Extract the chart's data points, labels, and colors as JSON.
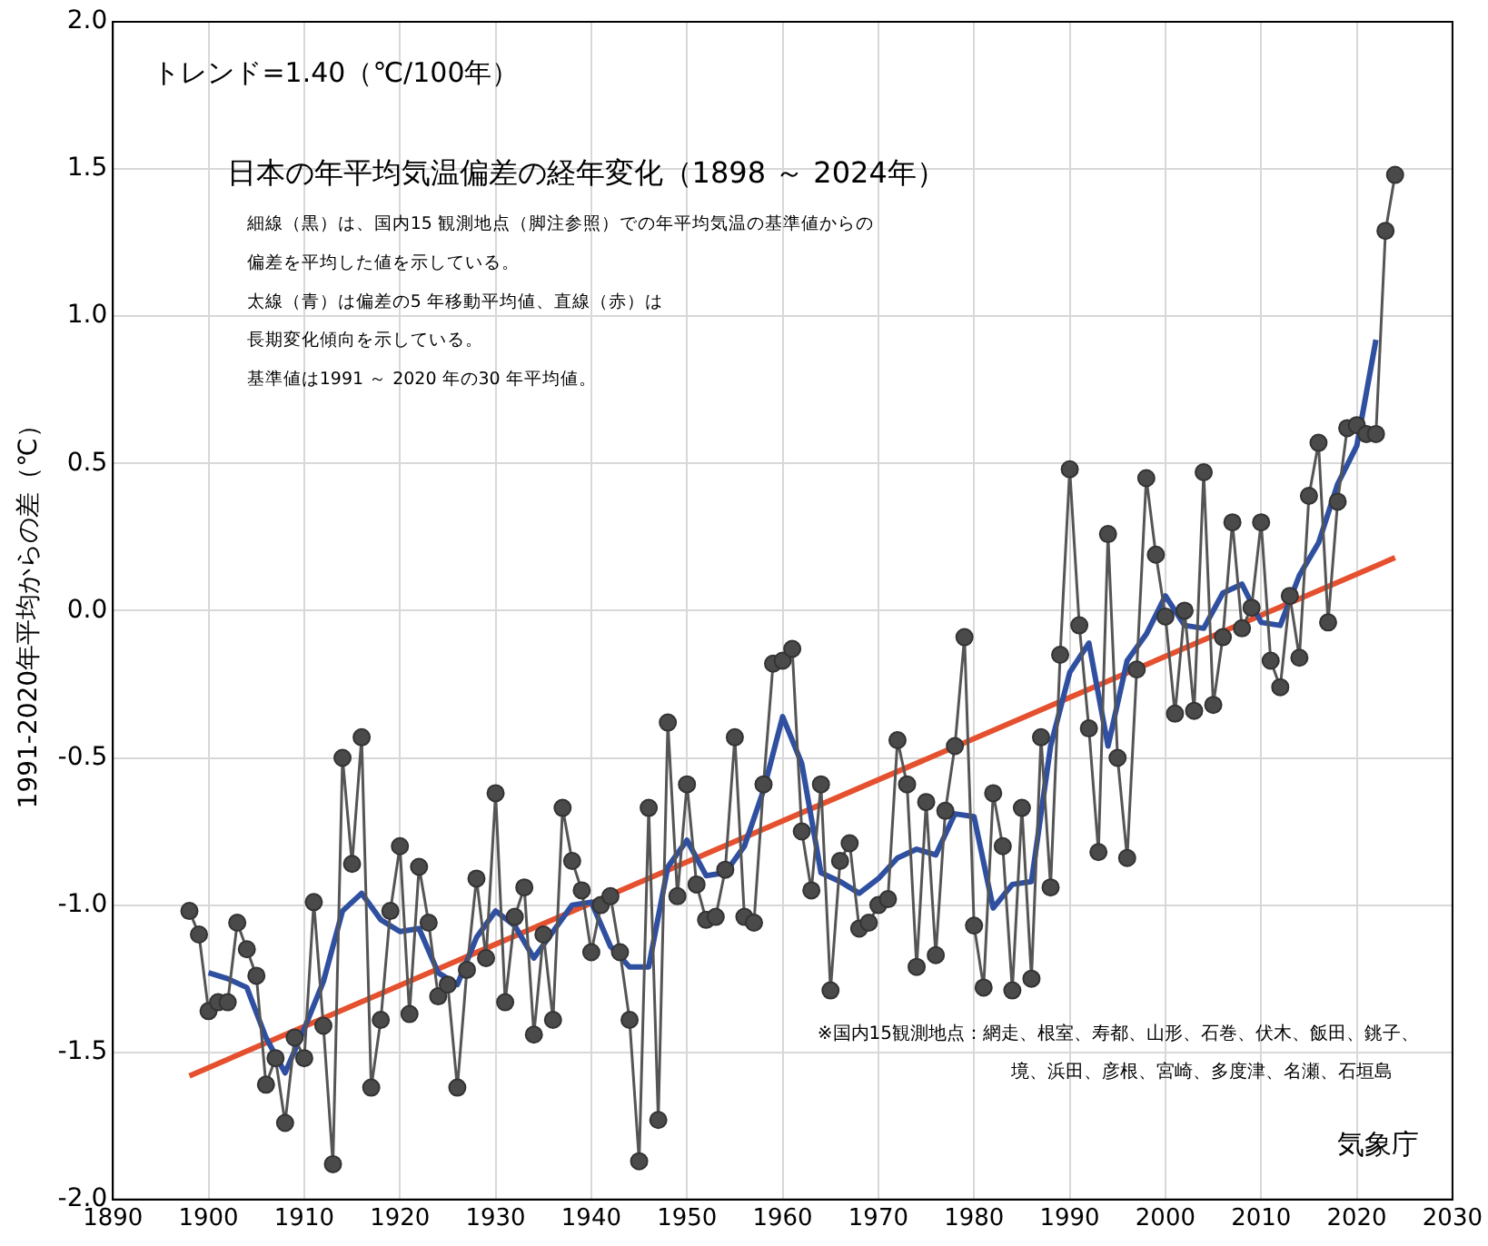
{
  "chart_data": {
    "type": "line",
    "title": "日本の年平均気温偏差の経年変化（1898 ～ 2024年）",
    "ylabel": "1991-2020年平均からの差（℃）",
    "annotations": [
      "トレンド=1.40（℃/100年）",
      "細線（黒）は、国内15 観測地点（脚注参照）での年平均気温の基準値からの",
      "偏差を平均した値を示している。",
      "太線（青）は偏差の5 年移動平均値、直線（赤）は",
      "長期変化傾向を示している。",
      "基準値は1991 ～ 2020 年の30 年平均値。",
      "※国内15観測地点：網走、根室、寿都、山形、石巻、伏木、飯田、銚子、",
      "境、浜田、彦根、宮崎、多度津、名瀬、石垣島",
      "気象庁"
    ],
    "xlim": [
      1890,
      2030
    ],
    "xticks": [
      1890,
      1900,
      1910,
      1920,
      1930,
      1940,
      1950,
      1960,
      1970,
      1980,
      1990,
      2000,
      2010,
      2020,
      2030
    ],
    "ylim": [
      -2,
      2
    ],
    "yticks": [
      {
        "value": -2,
        "label": "-2.0"
      },
      {
        "value": -1.5,
        "label": "-1.5"
      },
      {
        "value": -1,
        "label": "-1.0"
      },
      {
        "value": -0.5,
        "label": "-0.5"
      },
      {
        "value": 0,
        "label": "0.0"
      },
      {
        "value": 0.5,
        "label": "0.5"
      },
      {
        "value": 1,
        "label": "1.0"
      },
      {
        "value": 1.5,
        "label": "1.5"
      },
      {
        "value": 2,
        "label": "2.0"
      }
    ],
    "grid": true,
    "legend": false,
    "series": [
      {
        "marker": "circle",
        "color": "#555555",
        "x": [
          1898,
          1899,
          1900,
          1901,
          1902,
          1903,
          1904,
          1905,
          1906,
          1907,
          1908,
          1909,
          1910,
          1911,
          1912,
          1913,
          1914,
          1915,
          1916,
          1917,
          1918,
          1919,
          1920,
          1921,
          1922,
          1923,
          1924,
          1925,
          1926,
          1927,
          1928,
          1929,
          1930,
          1931,
          1932,
          1933,
          1934,
          1935,
          1936,
          1937,
          1938,
          1939,
          1940,
          1941,
          1942,
          1943,
          1944,
          1945,
          1946,
          1947,
          1948,
          1949,
          1950,
          1951,
          1952,
          1953,
          1954,
          1955,
          1956,
          1957,
          1958,
          1959,
          1960,
          1961,
          1962,
          1963,
          1964,
          1965,
          1966,
          1967,
          1968,
          1969,
          1970,
          1971,
          1972,
          1973,
          1974,
          1975,
          1976,
          1977,
          1978,
          1979,
          1980,
          1981,
          1982,
          1983,
          1984,
          1985,
          1986,
          1987,
          1988,
          1989,
          1990,
          1991,
          1992,
          1993,
          1994,
          1995,
          1996,
          1997,
          1998,
          1999,
          2000,
          2001,
          2002,
          2003,
          2004,
          2005,
          2006,
          2007,
          2008,
          2009,
          2010,
          2011,
          2012,
          2013,
          2014,
          2015,
          2016,
          2017,
          2018,
          2019,
          2020,
          2021,
          2022,
          2023,
          2024
        ],
        "values": [
          -1.02,
          -1.1,
          -1.36,
          -1.33,
          -1.33,
          -1.06,
          -1.15,
          -1.24,
          -1.61,
          -1.52,
          -1.74,
          -1.45,
          -1.52,
          -0.99,
          -1.41,
          -1.88,
          -0.5,
          -0.86,
          -0.43,
          -1.62,
          -1.39,
          -1.02,
          -0.8,
          -1.37,
          -0.87,
          -1.06,
          -1.31,
          -1.27,
          -1.62,
          -1.22,
          -0.91,
          -1.18,
          -0.62,
          -1.33,
          -1.04,
          -0.94,
          -1.44,
          -1.1,
          -1.39,
          -0.67,
          -0.85,
          -0.95,
          -1.16,
          -1.0,
          -0.97,
          -1.16,
          -1.39,
          -1.87,
          -0.67,
          -1.73,
          -0.38,
          -0.97,
          -0.59,
          -0.93,
          -1.05,
          -1.04,
          -0.88,
          -0.43,
          -1.04,
          -1.06,
          -0.59,
          -0.18,
          -0.17,
          -0.13,
          -0.75,
          -0.95,
          -0.59,
          -1.29,
          -0.85,
          -0.79,
          -1.08,
          -1.06,
          -1.0,
          -0.98,
          -0.44,
          -0.59,
          -1.21,
          -0.65,
          -1.17,
          -0.68,
          -0.46,
          -0.09,
          -1.07,
          -1.28,
          -0.62,
          -0.8,
          -1.29,
          -0.67,
          -1.25,
          -0.43,
          -0.94,
          -0.15,
          0.48,
          -0.05,
          -0.4,
          -0.82,
          0.26,
          -0.5,
          -0.84,
          -0.2,
          0.45,
          0.19,
          -0.02,
          -0.35,
          0.0,
          -0.34,
          0.47,
          -0.32,
          -0.09,
          0.3,
          -0.06,
          0.01,
          0.3,
          -0.17,
          -0.26,
          0.05,
          -0.16,
          0.39,
          0.57,
          -0.04,
          0.37,
          0.62,
          0.63,
          0.6,
          0.6,
          1.29,
          1.48
        ]
      },
      {
        "marker": "none",
        "color": "#2f4fa0",
        "x": [
          1900,
          1902,
          1904,
          1906,
          1908,
          1910,
          1912,
          1914,
          1916,
          1918,
          1920,
          1922,
          1924,
          1926,
          1928,
          1930,
          1932,
          1934,
          1936,
          1938,
          1940,
          1942,
          1944,
          1946,
          1948,
          1950,
          1952,
          1954,
          1956,
          1958,
          1960,
          1962,
          1964,
          1966,
          1968,
          1970,
          1972,
          1974,
          1976,
          1978,
          1980,
          1982,
          1984,
          1986,
          1988,
          1990,
          1992,
          1994,
          1996,
          1998,
          2000,
          2002,
          2004,
          2006,
          2008,
          2010,
          2012,
          2014,
          2016,
          2018,
          2020,
          2022
        ],
        "values": [
          -1.23,
          -1.25,
          -1.28,
          -1.45,
          -1.57,
          -1.42,
          -1.26,
          -1.02,
          -0.96,
          -1.05,
          -1.09,
          -1.08,
          -1.23,
          -1.27,
          -1.11,
          -1.02,
          -1.07,
          -1.18,
          -1.09,
          -1.0,
          -0.99,
          -1.14,
          -1.21,
          -1.21,
          -0.87,
          -0.78,
          -0.9,
          -0.89,
          -0.8,
          -0.61,
          -0.36,
          -0.52,
          -0.89,
          -0.92,
          -0.96,
          -0.91,
          -0.84,
          -0.81,
          -0.83,
          -0.69,
          -0.7,
          -1.01,
          -0.93,
          -0.92,
          -0.46,
          -0.21,
          -0.11,
          -0.46,
          -0.17,
          -0.08,
          0.05,
          -0.05,
          -0.06,
          0.06,
          0.09,
          -0.04,
          -0.05,
          0.12,
          0.23,
          0.43,
          0.56,
          0.92
        ]
      },
      {
        "marker": "none",
        "color": "#e5502e",
        "x": [
          1898,
          2024
        ],
        "values": [
          -1.58,
          0.18
        ]
      }
    ]
  }
}
